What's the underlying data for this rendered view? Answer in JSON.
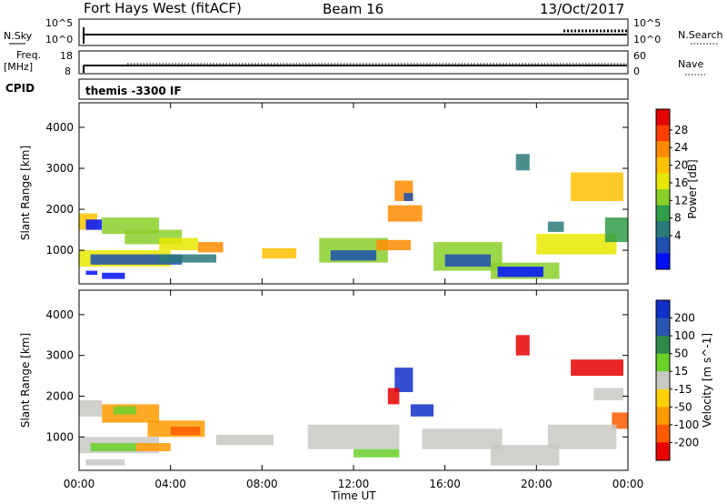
{
  "header": {
    "station": "Fort Hays West (fitACF)",
    "beam": "Beam 16",
    "date": "13/Oct/2017"
  },
  "top_panels": {
    "nsky_label": "N.Sky",
    "nsearch_label": "N.Search",
    "log_ticks_left": [
      "10^5",
      "10^0"
    ],
    "log_ticks_right": [
      "10^5",
      "10^0"
    ],
    "freq_label": "Freq.",
    "freq_unit": "[MHz]",
    "freq_ticks": [
      "18",
      "8"
    ],
    "nave_label": "Nave",
    "nave_ticks": [
      "60",
      "0"
    ],
    "cpid_label": "CPID",
    "cpid_value": "themis -3300 IF"
  },
  "power_colorbar": {
    "label": "Power [dB]",
    "ticks": [
      "28",
      "24",
      "20",
      "16",
      "12",
      "8",
      "4"
    ],
    "colors": [
      "#e30000",
      "#ff3e00",
      "#ff8c00",
      "#ffc000",
      "#e8e800",
      "#8bcf2a",
      "#2f9e4a",
      "#2a7a7a",
      "#1f4fb0",
      "#0010ff"
    ]
  },
  "velocity_colorbar": {
    "label": "Velocity [m s^-1]",
    "ticks": [
      "200",
      "100",
      "50",
      "15",
      "-15",
      "-50",
      "-100",
      "-200"
    ],
    "colors": [
      "#1030c8",
      "#2a55b0",
      "#2f8a4a",
      "#6ad02a",
      "#c8c8c4",
      "#ffd000",
      "#ff9a00",
      "#ff5a00",
      "#e80000"
    ]
  },
  "chart_data": [
    {
      "type": "heatmap",
      "name": "power",
      "ylabel": "Slant Range [km]",
      "yticks": [
        1000,
        2000,
        3000,
        4000
      ],
      "ylim": [
        180,
        4600
      ],
      "xlim": [
        0,
        24
      ],
      "patches": [
        {
          "t0": 0.0,
          "t1": 0.8,
          "r0": 1500,
          "r1": 1900,
          "level": 3
        },
        {
          "t0": 0.3,
          "t1": 1.0,
          "r0": 1500,
          "r1": 1750,
          "level": 9
        },
        {
          "t0": 1.0,
          "t1": 3.5,
          "r0": 1400,
          "r1": 1800,
          "level": 5
        },
        {
          "t0": 2.0,
          "t1": 4.5,
          "r0": 1150,
          "r1": 1500,
          "level": 5
        },
        {
          "t0": 3.5,
          "t1": 5.2,
          "r0": 1000,
          "r1": 1300,
          "level": 4
        },
        {
          "t0": 5.2,
          "t1": 6.3,
          "r0": 950,
          "r1": 1200,
          "level": 2
        },
        {
          "t0": 0.0,
          "t1": 4.0,
          "r0": 600,
          "r1": 1000,
          "level": 4
        },
        {
          "t0": 0.5,
          "t1": 4.5,
          "r0": 650,
          "r1": 900,
          "level": 8
        },
        {
          "t0": 3.5,
          "t1": 6.0,
          "r0": 700,
          "r1": 900,
          "level": 7
        },
        {
          "t0": 1.0,
          "t1": 2.0,
          "r0": 300,
          "r1": 450,
          "level": 9
        },
        {
          "t0": 0.3,
          "t1": 0.8,
          "r0": 400,
          "r1": 500,
          "level": 9
        },
        {
          "t0": 8.0,
          "t1": 9.5,
          "r0": 800,
          "r1": 1050,
          "level": 3
        },
        {
          "t0": 10.5,
          "t1": 13.5,
          "r0": 700,
          "r1": 1300,
          "level": 5
        },
        {
          "t0": 11.0,
          "t1": 13.0,
          "r0": 750,
          "r1": 1000,
          "level": 8
        },
        {
          "t0": 13.0,
          "t1": 14.5,
          "r0": 1000,
          "r1": 1250,
          "level": 2
        },
        {
          "t0": 13.8,
          "t1": 14.6,
          "r0": 2200,
          "r1": 2700,
          "level": 2
        },
        {
          "t0": 14.2,
          "t1": 14.6,
          "r0": 2200,
          "r1": 2400,
          "level": 8
        },
        {
          "t0": 13.5,
          "t1": 15.0,
          "r0": 1700,
          "r1": 2100,
          "level": 2
        },
        {
          "t0": 15.5,
          "t1": 18.5,
          "r0": 500,
          "r1": 1200,
          "level": 5
        },
        {
          "t0": 16.0,
          "t1": 18.0,
          "r0": 600,
          "r1": 900,
          "level": 8
        },
        {
          "t0": 18.0,
          "t1": 21.0,
          "r0": 300,
          "r1": 700,
          "level": 5
        },
        {
          "t0": 18.3,
          "t1": 20.3,
          "r0": 350,
          "r1": 600,
          "level": 9
        },
        {
          "t0": 19.1,
          "t1": 19.7,
          "r0": 2950,
          "r1": 3350,
          "level": 7
        },
        {
          "t0": 20.5,
          "t1": 21.2,
          "r0": 1450,
          "r1": 1700,
          "level": 7
        },
        {
          "t0": 20.0,
          "t1": 23.5,
          "r0": 900,
          "r1": 1400,
          "level": 4
        },
        {
          "t0": 21.5,
          "t1": 23.8,
          "r0": 2200,
          "r1": 2900,
          "level": 3
        },
        {
          "t0": 23.0,
          "t1": 24.0,
          "r0": 1200,
          "r1": 1800,
          "level": 6
        }
      ]
    },
    {
      "type": "heatmap",
      "name": "velocity",
      "ylabel": "Slant Range [km]",
      "xlabel": "Time UT",
      "xticks": [
        "00:00",
        "04:00",
        "08:00",
        "12:00",
        "16:00",
        "20:00",
        "00:00"
      ],
      "yticks": [
        1000,
        2000,
        3000,
        4000
      ],
      "ylim": [
        180,
        4600
      ],
      "xlim": [
        0,
        24
      ],
      "patches": [
        {
          "t0": 0.0,
          "t1": 1.0,
          "r0": 1500,
          "r1": 1900,
          "level": 4
        },
        {
          "t0": 1.0,
          "t1": 3.5,
          "r0": 1350,
          "r1": 1800,
          "level": 6
        },
        {
          "t0": 1.5,
          "t1": 2.5,
          "r0": 1550,
          "r1": 1750,
          "level": 3
        },
        {
          "t0": 3.0,
          "t1": 5.5,
          "r0": 1000,
          "r1": 1400,
          "level": 6
        },
        {
          "t0": 4.0,
          "t1": 5.3,
          "r0": 1050,
          "r1": 1250,
          "level": 7
        },
        {
          "t0": 0.0,
          "t1": 3.5,
          "r0": 600,
          "r1": 1000,
          "level": 4
        },
        {
          "t0": 0.5,
          "t1": 2.5,
          "r0": 650,
          "r1": 850,
          "level": 3
        },
        {
          "t0": 2.5,
          "t1": 4.0,
          "r0": 650,
          "r1": 850,
          "level": 6
        },
        {
          "t0": 0.3,
          "t1": 2.0,
          "r0": 300,
          "r1": 450,
          "level": 4
        },
        {
          "t0": 6.0,
          "t1": 8.5,
          "r0": 800,
          "r1": 1050,
          "level": 4
        },
        {
          "t0": 10.0,
          "t1": 14.0,
          "r0": 700,
          "r1": 1300,
          "level": 4
        },
        {
          "t0": 12.0,
          "t1": 14.0,
          "r0": 500,
          "r1": 700,
          "level": 3
        },
        {
          "t0": 13.8,
          "t1": 14.6,
          "r0": 2100,
          "r1": 2700,
          "level": 0
        },
        {
          "t0": 13.5,
          "t1": 14.0,
          "r0": 1800,
          "r1": 2200,
          "level": 8
        },
        {
          "t0": 14.5,
          "t1": 15.5,
          "r0": 1500,
          "r1": 1800,
          "level": 0
        },
        {
          "t0": 15.0,
          "t1": 18.5,
          "r0": 700,
          "r1": 1200,
          "level": 4
        },
        {
          "t0": 18.0,
          "t1": 21.0,
          "r0": 300,
          "r1": 800,
          "level": 4
        },
        {
          "t0": 19.1,
          "t1": 19.7,
          "r0": 3000,
          "r1": 3500,
          "level": 8
        },
        {
          "t0": 21.5,
          "t1": 23.8,
          "r0": 2500,
          "r1": 2900,
          "level": 8
        },
        {
          "t0": 22.5,
          "t1": 23.8,
          "r0": 1900,
          "r1": 2200,
          "level": 4
        },
        {
          "t0": 23.3,
          "t1": 24.0,
          "r0": 1200,
          "r1": 1600,
          "level": 7
        },
        {
          "t0": 20.5,
          "t1": 23.5,
          "r0": 700,
          "r1": 1300,
          "level": 4
        }
      ]
    }
  ]
}
